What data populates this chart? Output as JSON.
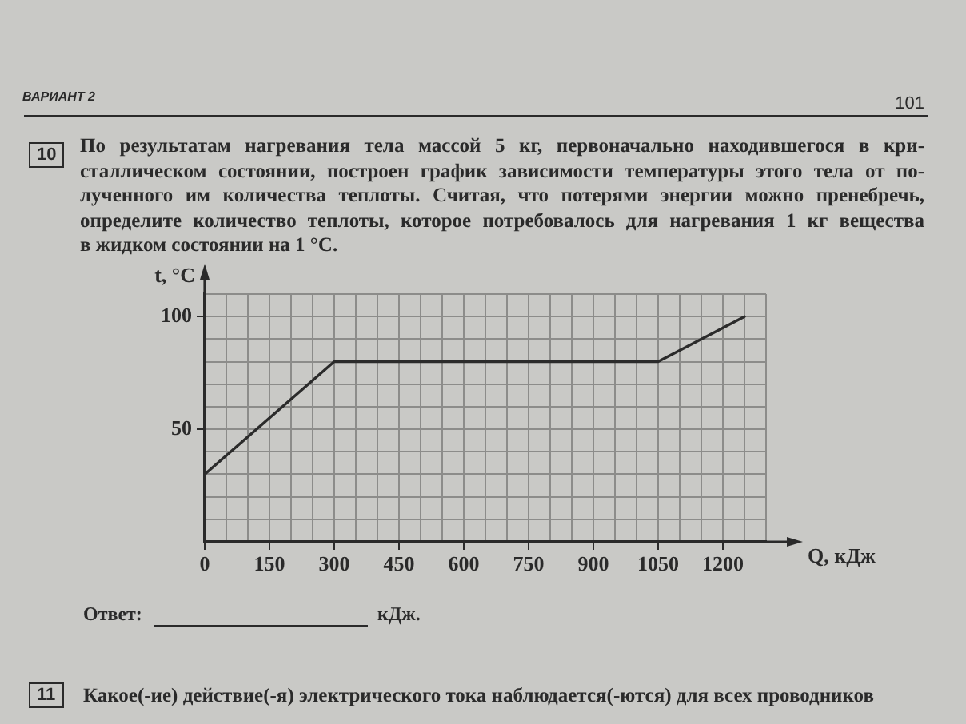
{
  "chart_data": {
    "type": "line",
    "title": "По результатам нагревания тела массой 5 кг, первоначально находившегося в кри-\nсталлическом состоянии, построен график зависимости температуры этого тела от по-\nлученного им количества теплоты. Считая, что потерями энергии можно пренебречь,\nопределите количество теплоты, которое потребовалось для нагревания 1 кг вещества\nв жидком состоянии на 1 °C.",
    "xlabel": "Q, кДж",
    "ylabel": "t, °C",
    "annotations": [
      "ВАРИАНТ 2",
      "101",
      "10",
      "Ответ:",
      "кДж.",
      "11",
      "Какое(-ие) действие(-я) электрического тока наблюдается(-ются) для всех проводников"
    ],
    "x": [
      0,
      300,
      1050,
      1250
    ],
    "series": [
      {
        "color": "#2b2b2b",
        "values": [
          30,
          80,
          80,
          100
        ]
      }
    ],
    "xlim": [
      0,
      1300
    ],
    "ylim": [
      0,
      110
    ],
    "xticks": [
      0,
      {
        "value": 50,
        "label": null
      },
      {
        "value": 100,
        "label": null
      },
      150,
      {
        "value": 200,
        "label": null
      },
      {
        "value": 250,
        "label": null
      },
      300,
      {
        "value": 350,
        "label": null
      },
      {
        "value": 400,
        "label": null
      },
      450,
      {
        "value": 500,
        "label": null
      },
      {
        "value": 550,
        "label": null
      },
      600,
      {
        "value": 650,
        "label": null
      },
      {
        "value": 700,
        "label": null
      },
      750,
      {
        "value": 800,
        "label": null
      },
      {
        "value": 850,
        "label": null
      },
      900,
      {
        "value": 950,
        "label": null
      },
      {
        "value": 1000,
        "label": null
      },
      1050,
      {
        "value": 1100,
        "label": null
      },
      {
        "value": 1150,
        "label": null
      },
      1200,
      {
        "value": 1250,
        "label": null
      },
      {
        "value": 1300,
        "label": null
      }
    ],
    "yticks": [
      {
        "value": 0,
        "label": null
      },
      {
        "value": 10,
        "label": null
      },
      {
        "value": 20,
        "label": null
      },
      {
        "value": 30,
        "label": null
      },
      {
        "value": 40,
        "label": null
      },
      50,
      {
        "value": 60,
        "label": null
      },
      {
        "value": 70,
        "label": null
      },
      {
        "value": 80,
        "label": null
      },
      {
        "value": 90,
        "label": null
      },
      100,
      {
        "value": 110,
        "label": null
      }
    ],
    "grid": true,
    "marker": "none"
  }
}
